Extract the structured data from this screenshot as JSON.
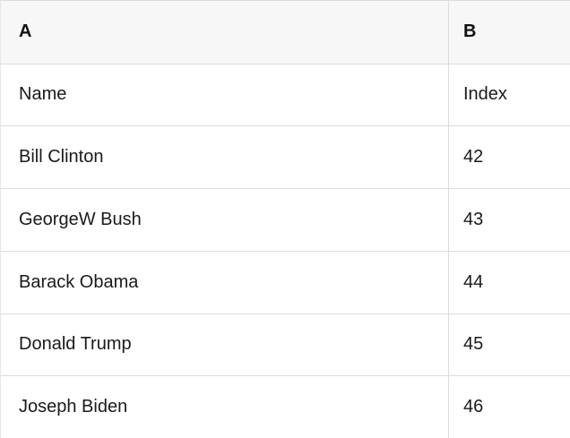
{
  "table": {
    "columns": [
      {
        "key": "A",
        "label": "A"
      },
      {
        "key": "B",
        "label": "B"
      }
    ],
    "rows": [
      {
        "a": "Name",
        "b": "Index"
      },
      {
        "a": "Bill Clinton",
        "b": "42"
      },
      {
        "a": "GeorgeW Bush",
        "b": "43"
      },
      {
        "a": "Barack Obama",
        "b": "44"
      },
      {
        "a": "Donald Trump",
        "b": "45"
      },
      {
        "a": "Joseph Biden",
        "b": "46"
      }
    ],
    "colors": {
      "header_bg": "#f7f7f7",
      "grid_line": "#dcdcdc",
      "text": "#1a1a1a",
      "cell_bg": "#ffffff"
    }
  }
}
